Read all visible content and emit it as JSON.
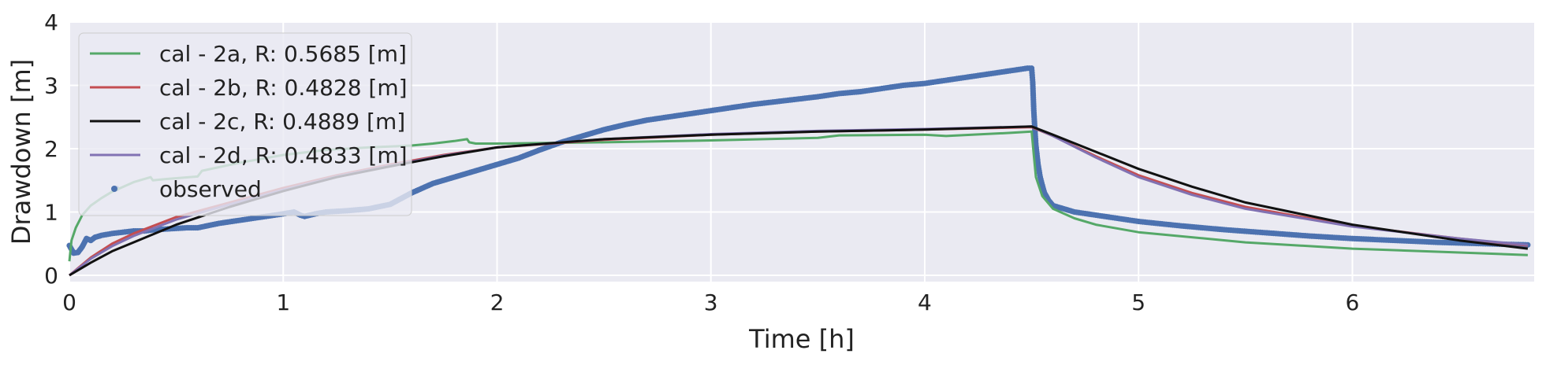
{
  "chart_data": {
    "type": "line",
    "title": "",
    "xlabel": "Time [h]",
    "ylabel": "Drawdown [m]",
    "xlim": [
      0,
      6.85
    ],
    "ylim": [
      -0.1,
      4
    ],
    "xticks": [
      0,
      1,
      2,
      3,
      4,
      5,
      6
    ],
    "yticks": [
      0,
      1,
      2,
      3,
      4
    ],
    "grid": true,
    "legend_position": "top-left",
    "background": "#eaeaf2",
    "series": [
      {
        "name": "cal - 2a, R: 0.5685 [m]",
        "kind": "line",
        "color": "#55a868",
        "x": [
          0,
          0.01,
          0.03,
          0.06,
          0.1,
          0.15,
          0.2,
          0.3,
          0.38,
          0.39,
          0.45,
          0.6,
          0.62,
          0.8,
          1.0,
          1.2,
          1.4,
          1.6,
          1.7,
          1.8,
          1.86,
          1.87,
          1.9,
          2.0,
          2.5,
          3.0,
          3.5,
          3.6,
          4.0,
          4.1,
          4.4,
          4.5,
          4.51,
          4.52,
          4.55,
          4.6,
          4.7,
          4.8,
          5.0,
          5.5,
          6.0,
          6.5,
          6.82
        ],
        "y": [
          0.22,
          0.55,
          0.75,
          0.95,
          1.1,
          1.22,
          1.32,
          1.47,
          1.55,
          1.5,
          1.52,
          1.56,
          1.65,
          1.78,
          1.9,
          1.98,
          2.02,
          2.05,
          2.08,
          2.12,
          2.15,
          2.1,
          2.08,
          2.08,
          2.1,
          2.13,
          2.17,
          2.21,
          2.22,
          2.2,
          2.25,
          2.27,
          1.9,
          1.55,
          1.25,
          1.05,
          0.9,
          0.8,
          0.68,
          0.52,
          0.42,
          0.36,
          0.32
        ]
      },
      {
        "name": "cal - 2b, R: 0.4828 [m]",
        "kind": "line",
        "color": "#c44e52",
        "x": [
          0,
          0.1,
          0.2,
          0.3,
          0.5,
          0.75,
          1.0,
          1.25,
          1.5,
          1.75,
          2.0,
          2.5,
          3.0,
          3.5,
          4.0,
          4.5,
          4.6,
          4.8,
          5.0,
          5.25,
          5.5,
          6.0,
          6.5,
          6.82
        ],
        "y": [
          0,
          0.28,
          0.5,
          0.66,
          0.92,
          1.15,
          1.38,
          1.58,
          1.75,
          1.9,
          2.02,
          2.14,
          2.22,
          2.27,
          2.3,
          2.34,
          2.2,
          1.88,
          1.58,
          1.3,
          1.08,
          0.78,
          0.58,
          0.47
        ]
      },
      {
        "name": "cal - 2c, R: 0.4889 [m]",
        "kind": "line",
        "color": "#111111",
        "x": [
          0,
          0.1,
          0.2,
          0.3,
          0.5,
          0.75,
          1.0,
          1.25,
          1.5,
          1.75,
          2.0,
          2.5,
          3.0,
          3.5,
          4.0,
          4.5,
          4.6,
          4.8,
          5.0,
          5.25,
          5.5,
          6.0,
          6.5,
          6.82
        ],
        "y": [
          0,
          0.2,
          0.38,
          0.52,
          0.8,
          1.08,
          1.33,
          1.55,
          1.72,
          1.88,
          2.02,
          2.15,
          2.22,
          2.27,
          2.3,
          2.35,
          2.22,
          1.95,
          1.68,
          1.4,
          1.15,
          0.8,
          0.55,
          0.42
        ]
      },
      {
        "name": "cal - 2d, R: 0.4833 [m]",
        "kind": "line",
        "color": "#8172b3",
        "x": [
          0,
          0.1,
          0.2,
          0.3,
          0.5,
          0.75,
          1.0,
          1.25,
          1.5,
          1.75,
          2.0,
          2.5,
          3.0,
          3.5,
          4.0,
          4.5,
          4.6,
          4.8,
          5.0,
          5.25,
          5.5,
          6.0,
          6.5,
          6.82
        ],
        "y": [
          0,
          0.26,
          0.46,
          0.62,
          0.88,
          1.12,
          1.35,
          1.56,
          1.73,
          1.89,
          2.02,
          2.15,
          2.23,
          2.28,
          2.31,
          2.35,
          2.2,
          1.86,
          1.55,
          1.27,
          1.05,
          0.77,
          0.58,
          0.48
        ]
      },
      {
        "name": "observed",
        "kind": "scatter",
        "color": "#4c72b0",
        "x": [
          0.0,
          0.02,
          0.04,
          0.06,
          0.08,
          0.1,
          0.12,
          0.15,
          0.2,
          0.25,
          0.3,
          0.35,
          0.4,
          0.45,
          0.5,
          0.55,
          0.6,
          0.7,
          0.8,
          0.9,
          1.0,
          1.05,
          1.08,
          1.1,
          1.15,
          1.2,
          1.3,
          1.4,
          1.5,
          1.6,
          1.7,
          1.8,
          1.9,
          2.0,
          2.1,
          2.2,
          2.3,
          2.4,
          2.5,
          2.6,
          2.7,
          2.8,
          2.9,
          3.0,
          3.1,
          3.2,
          3.3,
          3.4,
          3.5,
          3.6,
          3.7,
          3.8,
          3.9,
          4.0,
          4.1,
          4.2,
          4.3,
          4.4,
          4.48,
          4.5,
          4.505,
          4.51,
          4.515,
          4.52,
          4.53,
          4.54,
          4.55,
          4.56,
          4.58,
          4.6,
          4.65,
          4.7,
          4.8,
          4.9,
          5.0,
          5.2,
          5.4,
          5.6,
          5.8,
          6.0,
          6.2,
          6.4,
          6.6,
          6.82
        ],
        "y": [
          0.47,
          0.35,
          0.36,
          0.45,
          0.58,
          0.55,
          0.6,
          0.63,
          0.66,
          0.68,
          0.7,
          0.7,
          0.72,
          0.73,
          0.74,
          0.75,
          0.75,
          0.82,
          0.87,
          0.92,
          0.97,
          1.0,
          0.95,
          0.93,
          0.97,
          1.0,
          1.02,
          1.05,
          1.12,
          1.3,
          1.45,
          1.55,
          1.65,
          1.75,
          1.85,
          1.98,
          2.1,
          2.2,
          2.3,
          2.38,
          2.45,
          2.5,
          2.55,
          2.6,
          2.65,
          2.7,
          2.74,
          2.78,
          2.82,
          2.87,
          2.9,
          2.95,
          3.0,
          3.03,
          3.08,
          3.13,
          3.18,
          3.23,
          3.27,
          3.27,
          3.05,
          2.6,
          2.3,
          2.05,
          1.75,
          1.55,
          1.42,
          1.3,
          1.18,
          1.1,
          1.05,
          1.0,
          0.95,
          0.9,
          0.85,
          0.78,
          0.72,
          0.67,
          0.62,
          0.58,
          0.55,
          0.52,
          0.5,
          0.48
        ]
      }
    ],
    "outliers": [
      {
        "x": 0.22,
        "y": 1.37
      }
    ]
  }
}
